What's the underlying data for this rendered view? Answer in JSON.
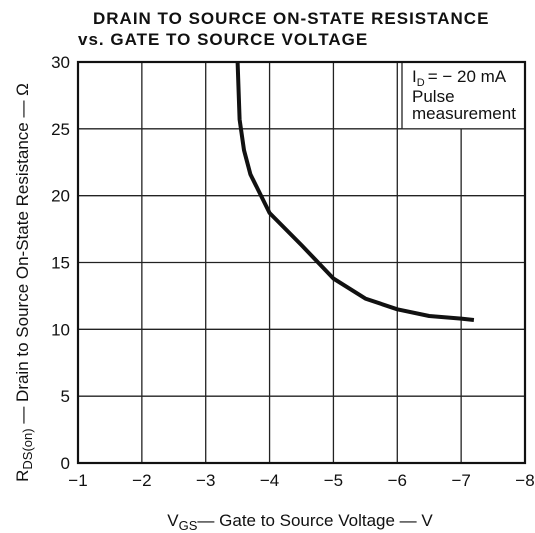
{
  "chart_data": {
    "type": "line",
    "title": [
      "DRAIN TO SOURCE ON-STATE RESISTANCE",
      "vs. GATE TO SOURCE VOLTAGE"
    ],
    "x_label": {
      "main": "V",
      "sub": "GS",
      "rest": "— Gate to Source Voltage — V"
    },
    "y_label": {
      "main": "R",
      "sub": "DS(on)",
      "rest": " — Drain to Source On-State Resistance — Ω"
    },
    "annotation": {
      "main": "I",
      "sub": "D",
      "rest": "= − 20 mA",
      "lines": [
        "Pulse",
        "measurement"
      ]
    },
    "x": [
      -3.5,
      -3.53,
      -3.6,
      -3.7,
      -4.0,
      -4.5,
      -5.0,
      -5.5,
      -6.0,
      -6.5,
      -7.0,
      -7.2
    ],
    "values": [
      30,
      25.7,
      23.4,
      21.6,
      18.7,
      16.3,
      13.8,
      12.3,
      11.5,
      11.0,
      10.8,
      10.7
    ],
    "color": "#111111",
    "xlim": [
      -1,
      -8
    ],
    "xticks": [
      {
        "value": -1,
        "label": "−1"
      },
      {
        "value": -2,
        "label": "−2"
      },
      {
        "value": -3,
        "label": "−3"
      },
      {
        "value": -4,
        "label": "−4"
      },
      {
        "value": -5,
        "label": "−5"
      },
      {
        "value": -6,
        "label": "−6"
      },
      {
        "value": -7,
        "label": "−7"
      },
      {
        "value": -8,
        "label": "−8"
      }
    ],
    "ylim": [
      0,
      30
    ],
    "yticks": [
      0,
      5,
      10,
      15,
      20,
      25,
      30
    ],
    "grid": true
  }
}
